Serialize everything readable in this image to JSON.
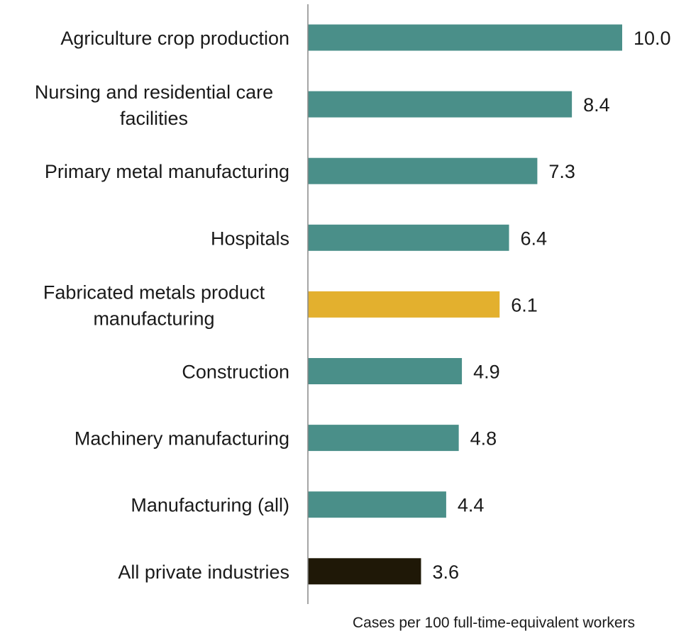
{
  "chart_data": {
    "type": "bar",
    "orientation": "horizontal",
    "categories": [
      [
        "Agriculture crop production"
      ],
      [
        "Nursing and residential care",
        "facilities"
      ],
      [
        "Primary metal manufacturing"
      ],
      [
        "Hospitals"
      ],
      [
        "Fabricated metals product",
        "manufacturing"
      ],
      [
        "Construction"
      ],
      [
        "Machinery manufacturing"
      ],
      [
        "Manufacturing (all)"
      ],
      [
        "All private industries"
      ]
    ],
    "values": [
      10.0,
      8.4,
      7.3,
      6.4,
      6.1,
      4.9,
      4.8,
      4.4,
      3.6
    ],
    "value_labels": [
      "10.0",
      "8.4",
      "7.3",
      "6.4",
      "6.1",
      "4.9",
      "4.8",
      "4.4",
      "3.6"
    ],
    "bar_colors": [
      "#4a8f89",
      "#4a8f89",
      "#4a8f89",
      "#4a8f89",
      "#e3b02e",
      "#4a8f89",
      "#4a8f89",
      "#4a8f89",
      "#1f1807"
    ],
    "xlabel": "Cases per 100 full-time-equivalent workers",
    "ylabel": "",
    "title": "",
    "xlim": [
      0,
      10
    ],
    "grid": false
  },
  "colors": {
    "axis_line": "#888888"
  }
}
